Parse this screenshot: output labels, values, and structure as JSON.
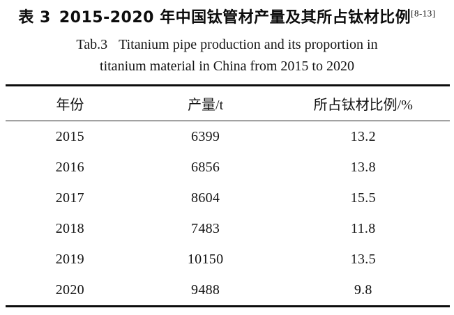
{
  "title_cn": {
    "label": "表 3",
    "text": "2015-2020 年中国钛管材产量及其所占钛材比例",
    "citation": "[8-13]"
  },
  "title_en": {
    "tab_label": "Tab.3",
    "line1_rest": "Titanium pipe production and its proportion in",
    "line2": "titanium material in China from 2015 to 2020"
  },
  "table": {
    "headers": [
      "年份",
      "产量/t",
      "所占钛材比例/%"
    ],
    "rows": [
      [
        "2015",
        "6399",
        "13.2"
      ],
      [
        "2016",
        "6856",
        "13.8"
      ],
      [
        "2017",
        "8604",
        "15.5"
      ],
      [
        "2018",
        "7483",
        "11.8"
      ],
      [
        "2019",
        "10150",
        "13.5"
      ],
      [
        "2020",
        "9488",
        "9.8"
      ]
    ]
  },
  "chart_data": {
    "type": "table",
    "title": "2015-2020 年中国钛管材产量及其所占钛材比例 / Titanium pipe production and its proportion in titanium material in China from 2015 to 2020",
    "columns": [
      "年份",
      "产量/t",
      "所占钛材比例/%"
    ],
    "years": [
      2015,
      2016,
      2017,
      2018,
      2019,
      2020
    ],
    "production_t": [
      6399,
      6856,
      8604,
      7483,
      10150,
      9488
    ],
    "proportion_pct": [
      13.2,
      13.8,
      15.5,
      11.8,
      13.5,
      9.8
    ]
  },
  "colors": {
    "text": "#141414",
    "rule": "#0d0d0d",
    "background": "#ffffff"
  }
}
